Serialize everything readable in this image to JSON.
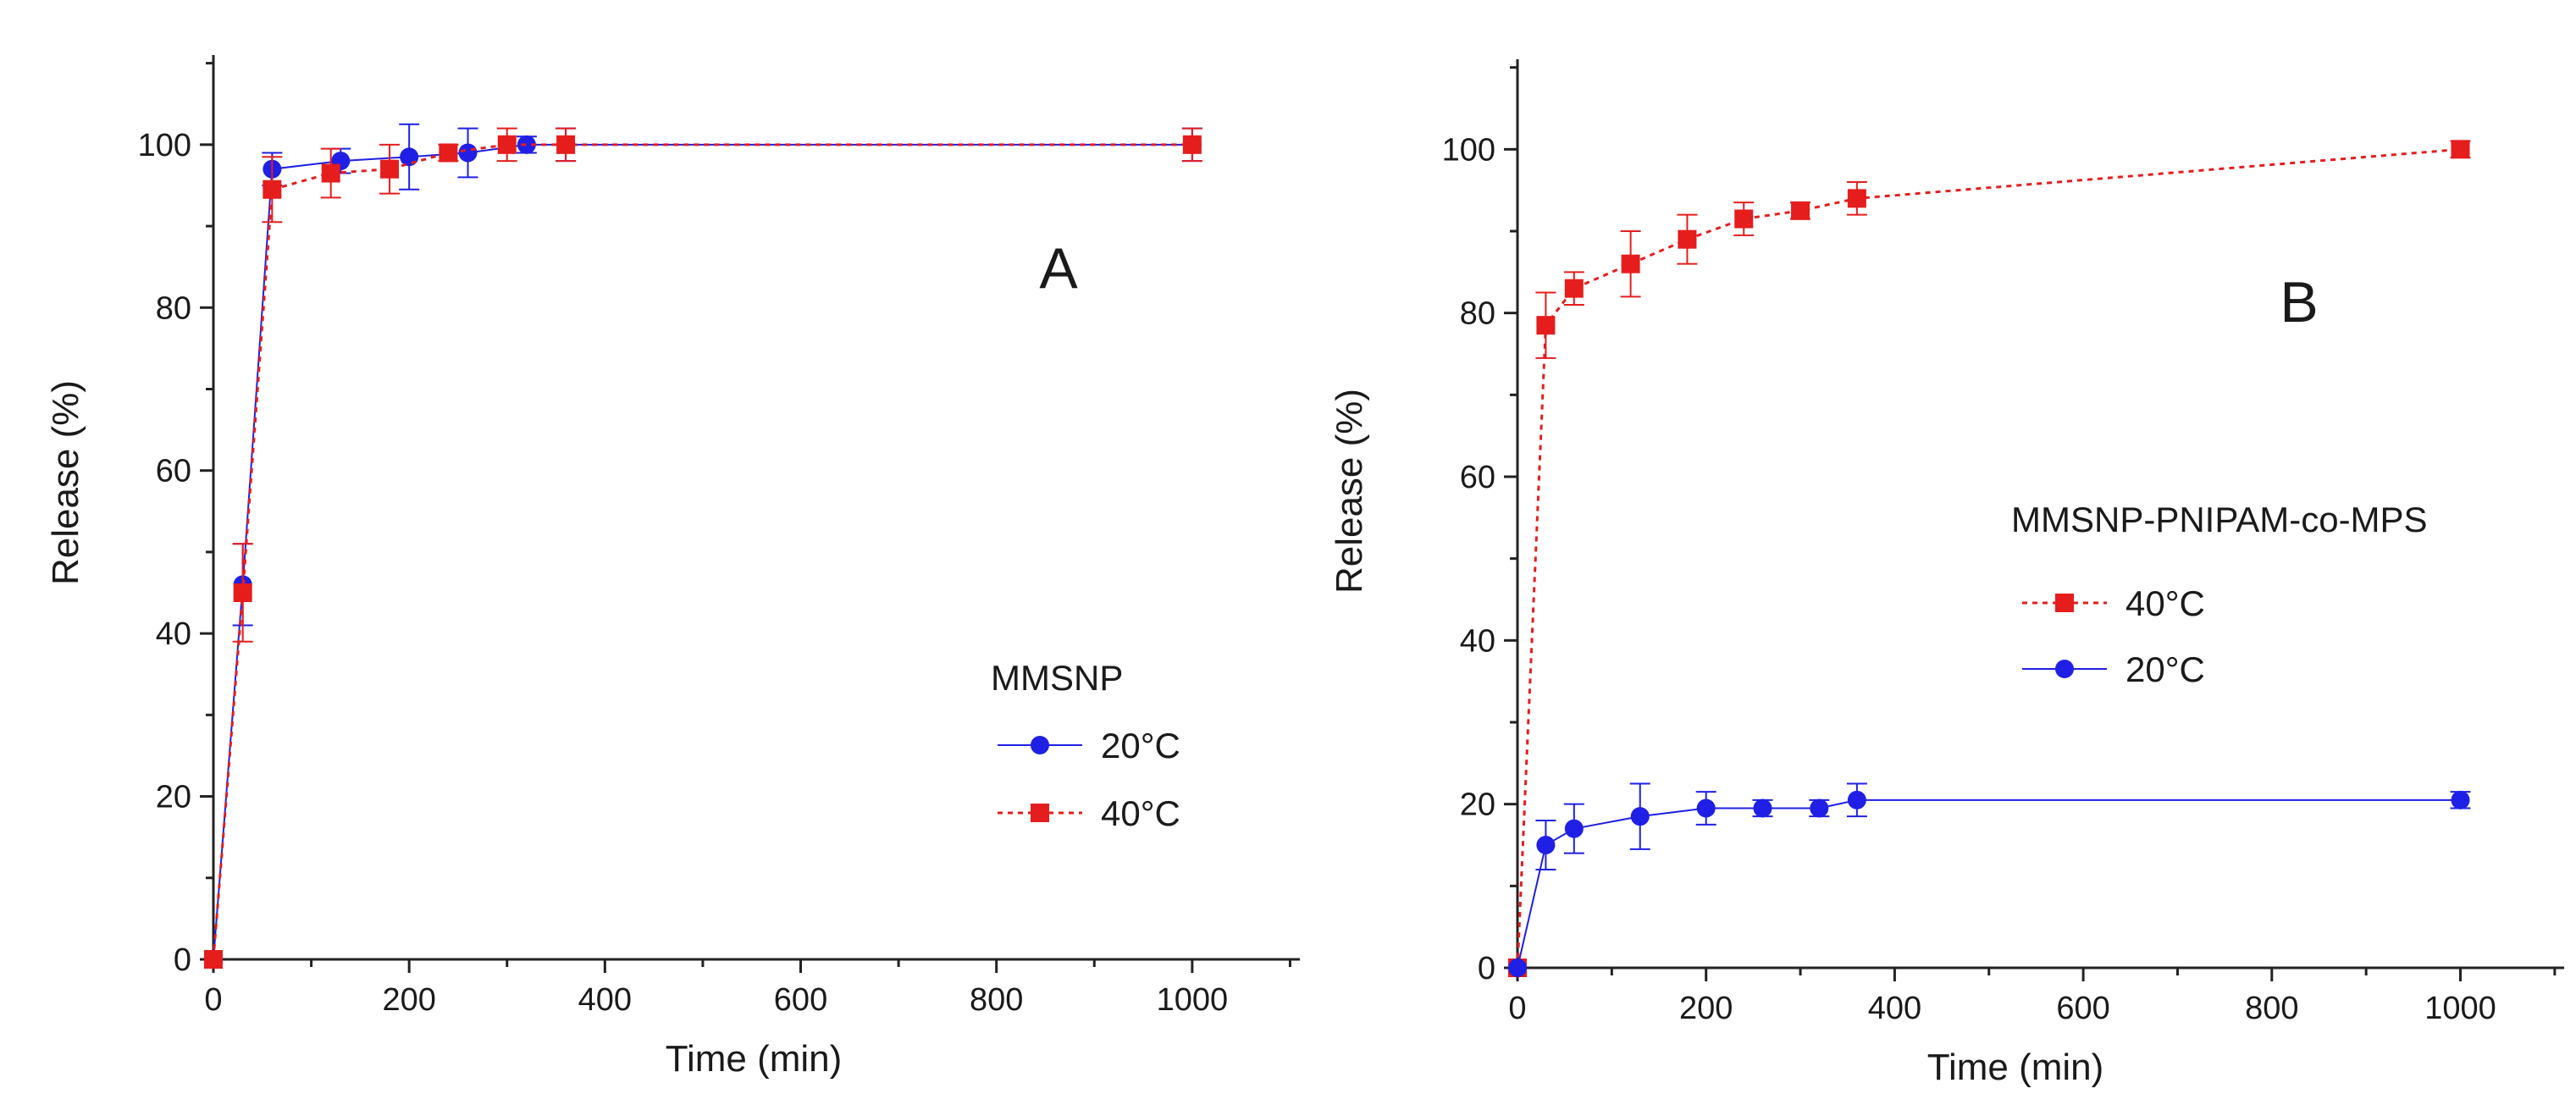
{
  "colors": {
    "s20": "#1f1fe6",
    "s40": "#e51d1d",
    "axis": "#222222"
  },
  "chart_data": [
    {
      "panel": "A",
      "type": "line",
      "title": "",
      "xlabel": "Time (min)",
      "ylabel": "Release (%)",
      "xlim": [
        0,
        1110
      ],
      "ylim": [
        0,
        111
      ],
      "xticks": [
        0,
        200,
        400,
        600,
        800,
        1000
      ],
      "yticks": [
        0,
        20,
        40,
        60,
        80,
        100
      ],
      "grid": false,
      "legend_title": "MMSNP",
      "legend_placement": "center-right",
      "series": [
        {
          "name": "20°C",
          "style": "solid-circle",
          "color": "#1f1fe6",
          "x": [
            0,
            30,
            60,
            130,
            200,
            260,
            320,
            360,
            1000
          ],
          "y": [
            0,
            46,
            97,
            98,
            98.5,
            99,
            100,
            100,
            100
          ],
          "err": [
            0,
            5,
            2,
            1.5,
            4,
            3,
            1,
            2,
            2
          ]
        },
        {
          "name": "40°C",
          "style": "dotted-square",
          "color": "#e51d1d",
          "x": [
            0,
            30,
            60,
            120,
            180,
            240,
            300,
            360,
            1000
          ],
          "y": [
            0,
            45,
            94.5,
            96.5,
            97,
            99,
            100,
            100,
            100
          ],
          "err": [
            0,
            6,
            4,
            3,
            3,
            1,
            2,
            2,
            2
          ]
        }
      ]
    },
    {
      "panel": "B",
      "type": "line",
      "title": "",
      "xlabel": "Time (min)",
      "ylabel": "Release (%)",
      "xlim": [
        0,
        1110
      ],
      "ylim": [
        0,
        111
      ],
      "xticks": [
        0,
        200,
        400,
        600,
        800,
        1000
      ],
      "yticks": [
        0,
        20,
        40,
        60,
        80,
        100
      ],
      "grid": false,
      "legend_title": "MMSNP-PNIPAM-co-MPS",
      "legend_placement": "center-right",
      "series": [
        {
          "name": "40°C",
          "style": "dotted-square",
          "color": "#e51d1d",
          "x": [
            0,
            30,
            60,
            120,
            180,
            240,
            300,
            360,
            1000
          ],
          "y": [
            0,
            78.5,
            83,
            86,
            89,
            91.5,
            92.5,
            94,
            100
          ],
          "err": [
            0,
            4,
            2,
            4,
            3,
            2,
            1,
            2,
            1
          ]
        },
        {
          "name": "20°C",
          "style": "solid-circle",
          "color": "#1f1fe6",
          "x": [
            0,
            30,
            60,
            130,
            200,
            260,
            320,
            360,
            1000
          ],
          "y": [
            0,
            15,
            17,
            18.5,
            19.5,
            19.5,
            19.5,
            20.5,
            20.5
          ],
          "err": [
            0,
            3,
            3,
            4,
            2,
            1,
            1,
            2,
            1
          ]
        }
      ]
    }
  ]
}
